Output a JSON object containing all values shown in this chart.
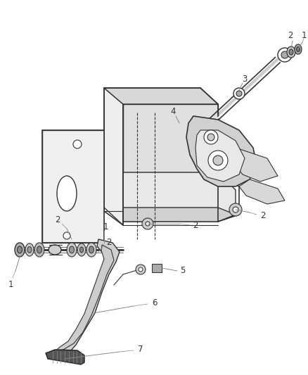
{
  "bg_color": "#ffffff",
  "line_color": "#333333",
  "fig_width": 4.38,
  "fig_height": 5.33,
  "dpi": 100
}
